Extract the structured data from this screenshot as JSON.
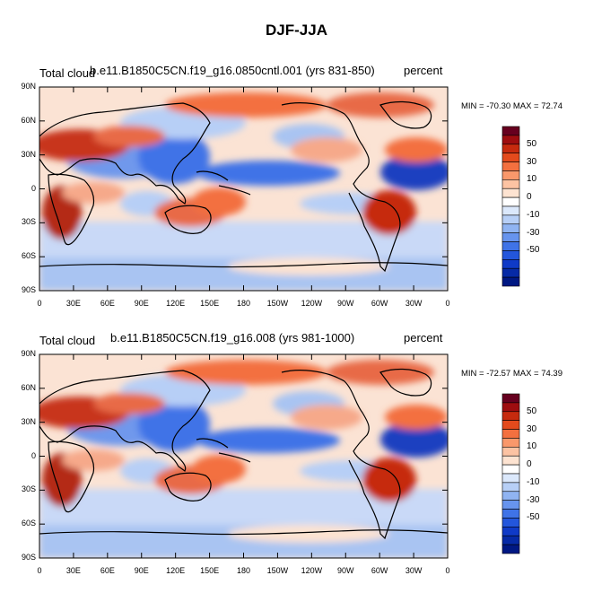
{
  "title": "DJF-JJA",
  "panels": [
    {
      "left_label": "Total cloud",
      "center_label": "b.e11.B1850C5CN.f19_g16.0850cntl.001 (yrs 831-850)",
      "right_label": "percent",
      "minmax": "MIN = -70.30 MAX =  72.74"
    },
    {
      "left_label": "Total cloud",
      "center_label": "b.e11.B1850C5CN.f19_g16.008 (yrs 981-1000)",
      "right_label": "percent",
      "minmax": "MIN = -72.57 MAX =  74.39"
    }
  ],
  "lat_labels": [
    "90N",
    "60N",
    "30N",
    "0",
    "30S",
    "60S",
    "90S"
  ],
  "lon_labels": [
    "0",
    "30E",
    "60E",
    "90E",
    "120E",
    "150E",
    "180",
    "150W",
    "120W",
    "90W",
    "60W",
    "30W",
    "0"
  ],
  "colorbar": {
    "labels": [
      "50",
      "30",
      "10",
      "0",
      "-10",
      "-30",
      "-50"
    ],
    "colors": [
      "#67001f",
      "#9e0d10",
      "#c62a0e",
      "#e34a1c",
      "#f3703f",
      "#f9986b",
      "#fcc3a3",
      "#fde3d1",
      "#ffffff",
      "#dbe8fb",
      "#b7cff6",
      "#90b4f2",
      "#6794ee",
      "#3f73e7",
      "#2356dc",
      "#0f3ac7",
      "#062aa6",
      "#001883"
    ]
  },
  "map_colors": {
    "base": "#fbe3d4",
    "strong_pos": "#b42a14",
    "pos": "#e86a47",
    "weak_pos": "#f6a98a",
    "neg": "#3f73e7",
    "weak_neg": "#a9c4f2",
    "strong_neg": "#1a3fc0",
    "coast": "#000000"
  }
}
